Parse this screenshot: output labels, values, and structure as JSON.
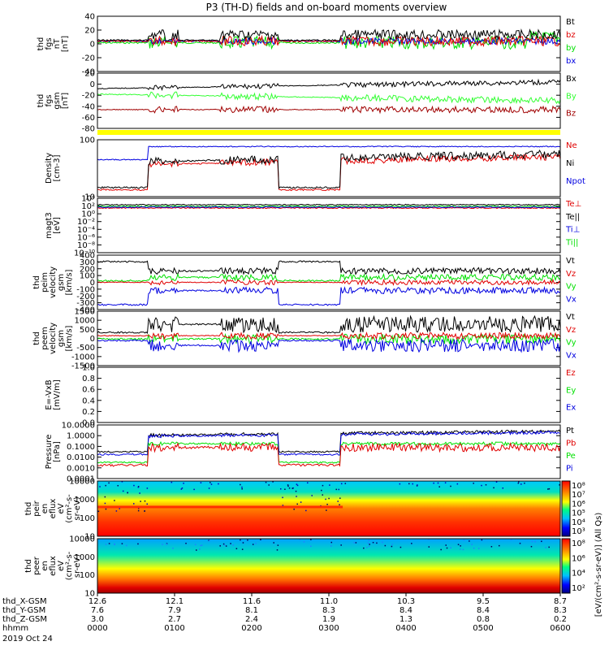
{
  "title": "P3 (TH-D) fields and on-board moments overview",
  "colors": {
    "black": "#000000",
    "red": "#e00000",
    "green": "#00e000",
    "blue": "#0000e0",
    "darkred": "#a00000",
    "yellow": "#ffff00",
    "bright_green": "#33ff33"
  },
  "panels": [
    {
      "id": "fgs-nT",
      "ylabel": [
        "thd",
        "fgs",
        "nT",
        "[nT]"
      ],
      "yticks": [
        "40",
        "20",
        "0",
        "-20",
        "-40"
      ],
      "legend": [
        {
          "text": "Bt",
          "color": "#000000"
        },
        {
          "text": "bz",
          "color": "#e00000"
        },
        {
          "text": "by",
          "color": "#00e000"
        },
        {
          "text": "bx",
          "color": "#0000e0"
        }
      ]
    },
    {
      "id": "fgs-gsm",
      "ylabel": [
        "thd",
        "fgs",
        "gsm",
        "[nT]"
      ],
      "yticks": [
        "20",
        "0",
        "-20",
        "-40",
        "-60",
        "-80"
      ],
      "legend": [
        {
          "text": "Bx",
          "color": "#000000"
        },
        {
          "text": "By",
          "color": "#33ff33"
        },
        {
          "text": "Bz",
          "color": "#a00000"
        }
      ]
    },
    {
      "id": "density",
      "ylabel": [
        "Density",
        "[cm-3]"
      ],
      "yticks": [
        "100",
        "10"
      ],
      "legend": [
        {
          "text": "Ne",
          "color": "#e00000"
        },
        {
          "text": "Ni",
          "color": "#000000"
        },
        {
          "text": "Npot",
          "color": "#0000e0"
        }
      ]
    },
    {
      "id": "temperature",
      "ylabel": [
        "magt3",
        "[eV]"
      ],
      "yticks": [
        "10⁴",
        "10²",
        "10⁰",
        "10⁻²",
        "10⁻⁴",
        "10⁻⁶",
        "10⁻⁸",
        "10⁻¹⁰"
      ],
      "legend": [
        {
          "text": "Te⊥",
          "color": "#e00000"
        },
        {
          "text": "Te||",
          "color": "#000000"
        },
        {
          "text": "Ti⊥",
          "color": "#0000e0"
        },
        {
          "text": "Ti||",
          "color": "#00e000"
        }
      ]
    },
    {
      "id": "peim-velocity",
      "ylabel": [
        "thd",
        "peim",
        "velocity",
        "gsm",
        "[km/s]"
      ],
      "yticks": [
        "400",
        "300",
        "200",
        "100",
        "0",
        "-100",
        "-200",
        "-300",
        "-400"
      ],
      "legend": [
        {
          "text": "Vt",
          "color": "#000000"
        },
        {
          "text": "Vz",
          "color": "#e00000"
        },
        {
          "text": "Vy",
          "color": "#00e000"
        },
        {
          "text": "Vx",
          "color": "#0000e0"
        }
      ]
    },
    {
      "id": "peem-velocity",
      "ylabel": [
        "thd",
        "peem",
        "velocity",
        "gsm",
        "[km/s]"
      ],
      "yticks": [
        "1500",
        "1000",
        "500",
        "0",
        "-500",
        "-1000",
        "-1500"
      ],
      "legend": [
        {
          "text": "Vt",
          "color": "#000000"
        },
        {
          "text": "Vz",
          "color": "#e00000"
        },
        {
          "text": "Vy",
          "color": "#00e000"
        },
        {
          "text": "Vx",
          "color": "#0000e0"
        }
      ]
    },
    {
      "id": "efield",
      "ylabel": [
        "E=-VxB",
        "[mV/m]"
      ],
      "yticks": [
        "1.0",
        "0.8",
        "0.6",
        "0.4",
        "0.2",
        "0.0"
      ],
      "legend": [
        {
          "text": "Ez",
          "color": "#e00000"
        },
        {
          "text": "Ey",
          "color": "#00e000"
        },
        {
          "text": "Ex",
          "color": "#0000e0"
        }
      ]
    },
    {
      "id": "pressure",
      "ylabel": [
        "Pressure",
        "[nPa]"
      ],
      "yticks": [
        "10.0000",
        "1.0000",
        "0.1000",
        "0.0100",
        "0.0010",
        "0.0001"
      ],
      "legend": [
        {
          "text": "Pt",
          "color": "#000000"
        },
        {
          "text": "Pb",
          "color": "#e00000"
        },
        {
          "text": "Pe",
          "color": "#00e000"
        },
        {
          "text": "Pi",
          "color": "#0000e0"
        }
      ]
    },
    {
      "id": "peir-spectrogram",
      "ylabel": [
        "thd",
        "peir",
        "en",
        "eflux",
        "eV",
        "(cm²-s-",
        "sr-eV)"
      ],
      "yticks": [
        "10000",
        "1000",
        "100",
        "10"
      ],
      "colorbar": [
        "10⁸",
        "10⁷",
        "10⁶",
        "10⁵",
        "10⁴",
        "10³"
      ]
    },
    {
      "id": "peer-spectrogram",
      "ylabel": [
        "thd",
        "peer",
        "en",
        "eflux",
        "eV",
        "(cm²-s-",
        "sr-eV)"
      ],
      "yticks": [
        "10000",
        "1000",
        "100",
        "10"
      ],
      "colorbar": [
        "10⁸",
        "10⁶",
        "10⁴",
        "10²"
      ]
    }
  ],
  "colorbar_label": "[eV/(cm²-s-sr-eV)] (All Qs)",
  "time_axis": {
    "row_labels": [
      "thd_X-GSM",
      "thd_Y-GSM",
      "thd_Z-GSM",
      "hhmm",
      "2019 Oct 24"
    ],
    "columns": [
      {
        "x": "12.6",
        "y": "7.6",
        "z": "3.0",
        "t": "0000"
      },
      {
        "x": "12.1",
        "y": "7.9",
        "z": "2.7",
        "t": "0100"
      },
      {
        "x": "11.6",
        "y": "8.1",
        "z": "2.4",
        "t": "0200"
      },
      {
        "x": "11.0",
        "y": "8.3",
        "z": "1.9",
        "t": "0300"
      },
      {
        "x": "10.3",
        "y": "8.4",
        "z": "1.3",
        "t": "0400"
      },
      {
        "x": "9.5",
        "y": "8.4",
        "z": "0.8",
        "t": "0500"
      },
      {
        "x": "8.7",
        "y": "8.3",
        "z": "0.2",
        "t": "0600"
      }
    ]
  },
  "chart_data": [
    {
      "type": "line",
      "title": "P3 (TH-D) fields and on-board moments overview",
      "xlabel": "hhmm",
      "ylabel": "thd fgs nT [nT]",
      "ylim": [
        -40,
        40
      ],
      "x": [
        "0000",
        "0030",
        "0100",
        "0130",
        "0200",
        "0230",
        "0300",
        "0330",
        "0400",
        "0430",
        "0500",
        "0530",
        "0600"
      ],
      "series": [
        {
          "name": "Bt",
          "values": [
            2,
            2,
            10,
            12,
            12,
            2,
            2,
            14,
            10,
            10,
            12,
            16,
            20
          ]
        },
        {
          "name": "bz",
          "values": [
            1,
            1,
            3,
            3,
            4,
            1,
            1,
            3,
            2,
            3,
            4,
            6,
            8
          ]
        },
        {
          "name": "by",
          "values": [
            -1,
            -1,
            -4,
            -5,
            -6,
            -1,
            -1,
            -8,
            -10,
            -12,
            -14,
            -16,
            -22
          ]
        },
        {
          "name": "bx",
          "values": [
            0,
            0,
            1,
            1,
            2,
            0,
            0,
            2,
            2,
            2,
            3,
            4,
            6
          ]
        }
      ]
    },
    {
      "type": "line",
      "ylabel": "thd fgs gsm [nT]",
      "ylim": [
        -80,
        20
      ],
      "x": [
        "0000",
        "0030",
        "0100",
        "0130",
        "0200",
        "0230",
        "0300",
        "0330",
        "0400",
        "0430",
        "0500",
        "0530",
        "0600"
      ],
      "series": [
        {
          "name": "Bx",
          "values": [
            -6,
            -4,
            -3,
            -2,
            -2,
            -1,
            0,
            2,
            3,
            4,
            5,
            5,
            5
          ]
        },
        {
          "name": "By",
          "values": [
            -10,
            -12,
            -15,
            -18,
            -20,
            -21,
            -22,
            -24,
            -26,
            -28,
            -30,
            -34,
            -40
          ]
        },
        {
          "name": "Bz",
          "values": [
            -40,
            -45,
            -48,
            -50,
            -52,
            -50,
            -50,
            -50,
            -49,
            -48,
            -46,
            -42,
            -40
          ]
        }
      ]
    },
    {
      "type": "line",
      "ylabel": "Density [cm-3]",
      "yscale": "log",
      "ylim": [
        3,
        200
      ],
      "x": [
        "0000",
        "0030",
        "0100",
        "0130",
        "0200",
        "0230",
        "0300",
        "0330",
        "0400",
        "0430",
        "0500",
        "0530",
        "0600"
      ],
      "series": [
        {
          "name": "Ne",
          "values": [
            4,
            4,
            30,
            30,
            30,
            4,
            4,
            30,
            35,
            40,
            45,
            55,
            70
          ]
        },
        {
          "name": "Ni",
          "values": [
            5,
            5,
            35,
            35,
            35,
            5,
            5,
            35,
            45,
            50,
            55,
            65,
            90
          ]
        },
        {
          "name": "Npot",
          "values": [
            60,
            60,
            110,
            110,
            110,
            110,
            110,
            110,
            110,
            110,
            110,
            110,
            110
          ]
        }
      ]
    },
    {
      "type": "line",
      "ylabel": "Pressure [nPa]",
      "yscale": "log",
      "ylim": [
        0.0001,
        10
      ],
      "x": [
        "0000",
        "0030",
        "0100",
        "0130",
        "0200",
        "0230",
        "0300",
        "0330",
        "0400",
        "0430",
        "0500",
        "0530",
        "0600"
      ],
      "series": [
        {
          "name": "Pt",
          "values": [
            0.4,
            0.5,
            1.5,
            1.5,
            1.5,
            0.07,
            0.07,
            1.0,
            1.1,
            1.2,
            1.4,
            2.0,
            2.5
          ]
        },
        {
          "name": "Pb",
          "values": [
            0.03,
            0.02,
            0.15,
            0.2,
            0.25,
            0.008,
            0.008,
            0.2,
            0.2,
            0.22,
            0.25,
            0.3,
            0.35
          ]
        },
        {
          "name": "Pe",
          "values": [
            0.07,
            0.04,
            0.1,
            0.1,
            0.1,
            0.005,
            0.005,
            0.08,
            0.1,
            0.1,
            0.12,
            0.15,
            0.2
          ]
        },
        {
          "name": "Pi",
          "values": [
            0.4,
            0.5,
            1.4,
            1.4,
            1.4,
            0.06,
            0.06,
            1.0,
            1.0,
            1.1,
            1.3,
            1.9,
            2.4
          ]
        }
      ]
    }
  ]
}
